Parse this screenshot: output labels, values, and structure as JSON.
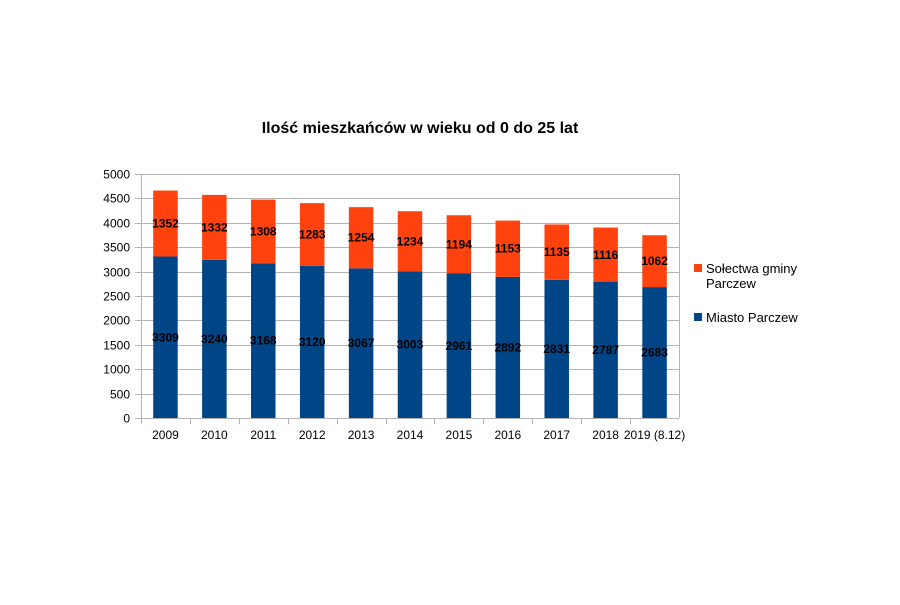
{
  "chart_data": {
    "type": "bar",
    "stacked": true,
    "title": "Ilość mieszkańców w wieku od 0 do 25 lat",
    "xlabel": "",
    "ylabel": "",
    "categories": [
      "2009",
      "2010",
      "2011",
      "2012",
      "2013",
      "2014",
      "2015",
      "2016",
      "2017",
      "2018",
      "2019 (8.12)"
    ],
    "series": [
      {
        "name": "Miasto Parczew",
        "color": "#004586",
        "values": [
          3309,
          3240,
          3168,
          3120,
          3067,
          3003,
          2961,
          2892,
          2831,
          2787,
          2683
        ]
      },
      {
        "name": "Sołectwa gminy Parczew",
        "color": "#ff420e",
        "values": [
          1352,
          1332,
          1308,
          1283,
          1254,
          1234,
          1194,
          1153,
          1135,
          1116,
          1062
        ]
      }
    ],
    "ylim": [
      0,
      5000
    ],
    "yticks": [
      0,
      500,
      1000,
      1500,
      2000,
      2500,
      3000,
      3500,
      4000,
      4500,
      5000
    ],
    "grid": true,
    "legend": {
      "placement": "right",
      "entries": [
        {
          "label_lines": [
            "Sołectwa gminy",
            "Parczew"
          ],
          "color": "#ff420e"
        },
        {
          "label_lines": [
            "Miasto Parczew"
          ],
          "color": "#004586"
        }
      ]
    }
  }
}
